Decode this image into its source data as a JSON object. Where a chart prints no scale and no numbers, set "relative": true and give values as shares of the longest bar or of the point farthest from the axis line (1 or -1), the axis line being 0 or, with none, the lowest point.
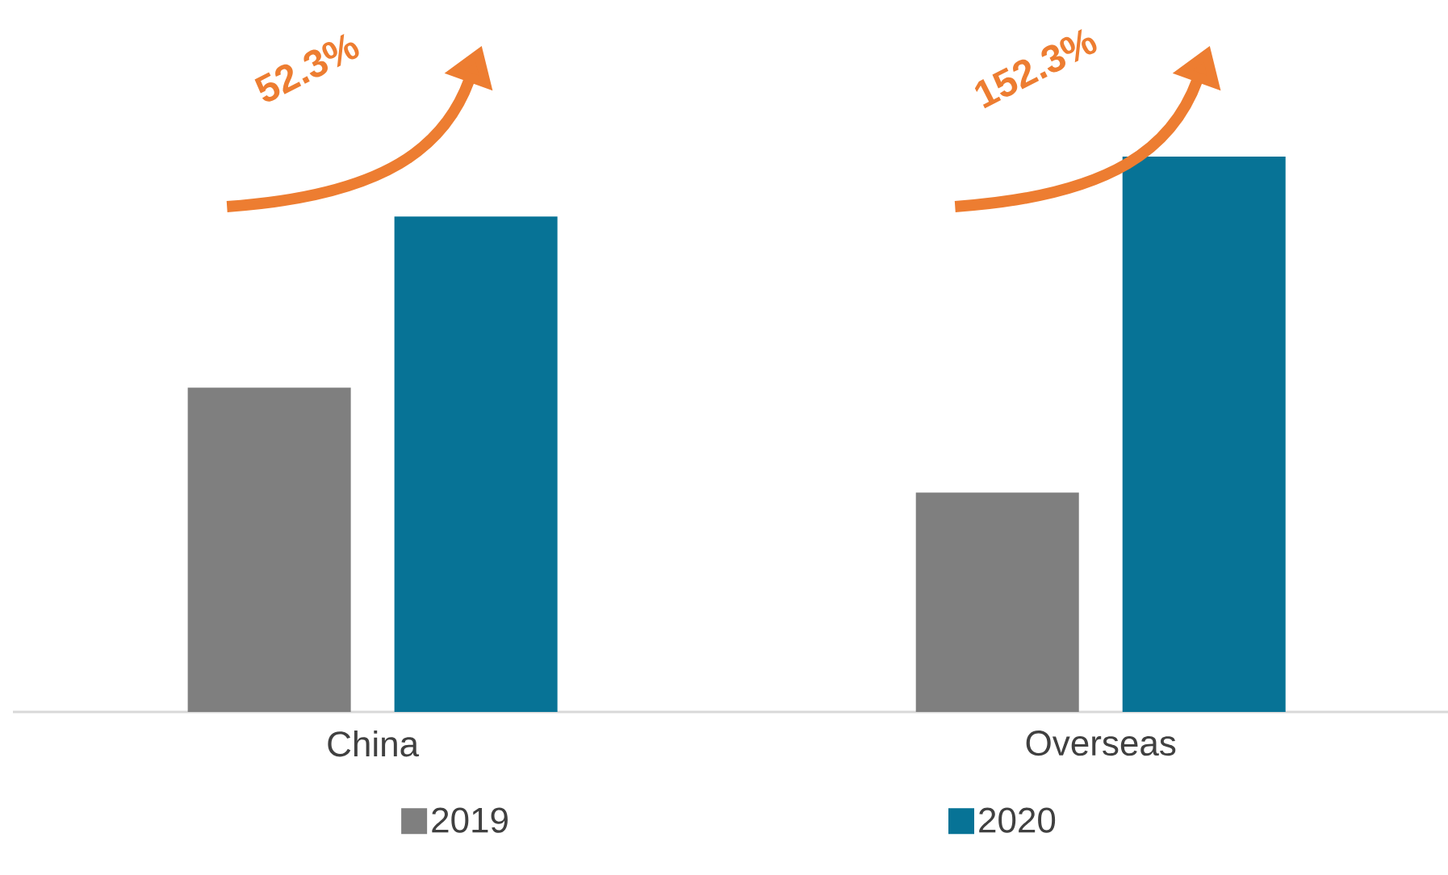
{
  "chart_data": {
    "type": "bar",
    "relative": true,
    "categories": [
      "China",
      "Overseas"
    ],
    "series": [
      {
        "name": "2019",
        "color": "#7f7f7f",
        "values": [
          0.584,
          0.395
        ]
      },
      {
        "name": "2020",
        "color": "#077396",
        "values": [
          0.892,
          1
        ]
      }
    ],
    "annotations": [
      "52.3%",
      "152.3%"
    ],
    "legend": "bottom"
  }
}
